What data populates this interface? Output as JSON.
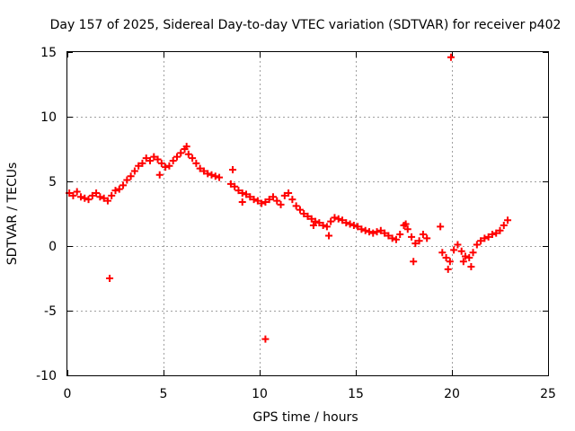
{
  "chart_data": {
    "type": "scatter",
    "title": "Day 157 of 2025, Sidereal Day-to-day VTEC variation (SDTVAR) for receiver p402",
    "xlabel": "GPS time / hours",
    "ylabel": "SDTVAR / TECUs",
    "xlim": [
      0,
      25
    ],
    "ylim": [
      -10,
      15
    ],
    "xticks": [
      0,
      5,
      10,
      15,
      20,
      25
    ],
    "yticks": [
      -10,
      -5,
      0,
      5,
      10,
      15
    ],
    "xtick_labels": [
      "0",
      "5",
      "10",
      "15",
      "20",
      "25"
    ],
    "ytick_labels": [
      "-10",
      "-5",
      "0",
      "5",
      "10",
      "15"
    ],
    "grid": true,
    "marker": "+",
    "color": "#ff0000",
    "series": [
      {
        "name": "SDTVAR",
        "x": [
          0.1,
          0.3,
          0.5,
          0.7,
          0.9,
          1.1,
          1.3,
          1.5,
          1.7,
          1.9,
          2.1,
          2.3,
          2.5,
          2.7,
          2.9,
          3.1,
          3.3,
          3.5,
          3.7,
          3.9,
          4.1,
          4.3,
          4.5,
          4.7,
          4.9,
          5.1,
          5.3,
          5.5,
          5.7,
          5.9,
          6.1,
          6.3,
          6.5,
          6.7,
          6.9,
          7.1,
          7.3,
          7.5,
          7.7,
          7.9,
          8.5,
          8.7,
          8.9,
          9.1,
          9.3,
          9.5,
          9.7,
          9.9,
          10.1,
          10.3,
          10.5,
          10.7,
          10.9,
          11.1,
          11.3,
          11.5,
          11.7,
          11.9,
          12.1,
          12.3,
          12.5,
          12.7,
          12.9,
          13.1,
          13.3,
          13.5,
          13.7,
          13.9,
          14.1,
          14.3,
          14.5,
          14.7,
          14.9,
          15.1,
          15.3,
          15.5,
          15.7,
          15.9,
          16.1,
          16.3,
          16.5,
          16.7,
          16.9,
          17.1,
          17.3,
          17.5,
          17.7,
          17.9,
          18.1,
          18.3,
          18.5,
          18.7,
          19.5,
          19.7,
          19.9,
          20.1,
          20.3,
          20.5,
          20.7,
          20.9,
          21.1,
          21.3,
          21.5,
          21.7,
          21.9,
          22.1,
          22.3,
          22.5,
          22.7,
          22.9,
          2.2,
          4.8,
          6.2,
          8.6,
          9.1,
          12.8,
          13.6,
          17.6,
          18.0,
          19.4,
          19.8,
          20.6,
          21.0,
          19.95,
          10.3
        ],
        "y": [
          4.1,
          3.9,
          4.2,
          3.8,
          3.7,
          3.6,
          3.9,
          4.1,
          3.8,
          3.7,
          3.5,
          3.9,
          4.3,
          4.4,
          4.7,
          5.1,
          5.4,
          5.8,
          6.2,
          6.4,
          6.8,
          6.6,
          6.9,
          6.7,
          6.4,
          6.1,
          6.2,
          6.6,
          6.9,
          7.2,
          7.5,
          7.1,
          6.8,
          6.4,
          6.0,
          5.8,
          5.6,
          5.5,
          5.4,
          5.3,
          4.8,
          4.6,
          4.3,
          4.1,
          4.0,
          3.8,
          3.6,
          3.5,
          3.3,
          3.4,
          3.6,
          3.8,
          3.5,
          3.2,
          3.9,
          4.1,
          3.6,
          3.1,
          2.8,
          2.5,
          2.3,
          2.1,
          1.9,
          1.8,
          1.6,
          1.5,
          1.9,
          2.2,
          2.1,
          2.0,
          1.8,
          1.7,
          1.6,
          1.5,
          1.3,
          1.2,
          1.1,
          1.0,
          1.1,
          1.2,
          1.0,
          0.8,
          0.6,
          0.5,
          0.9,
          1.6,
          1.3,
          0.7,
          0.2,
          0.4,
          0.9,
          0.6,
          -0.5,
          -0.9,
          -1.2,
          -0.3,
          0.1,
          -0.4,
          -0.8,
          -0.9,
          -0.5,
          0.1,
          0.4,
          0.6,
          0.7,
          0.9,
          1.0,
          1.2,
          1.6,
          2.0,
          -2.5,
          5.5,
          7.7,
          5.9,
          3.4,
          1.6,
          0.8,
          1.7,
          -1.2,
          1.5,
          -1.8,
          -1.2,
          -1.6,
          14.6,
          -7.2
        ]
      }
    ]
  }
}
